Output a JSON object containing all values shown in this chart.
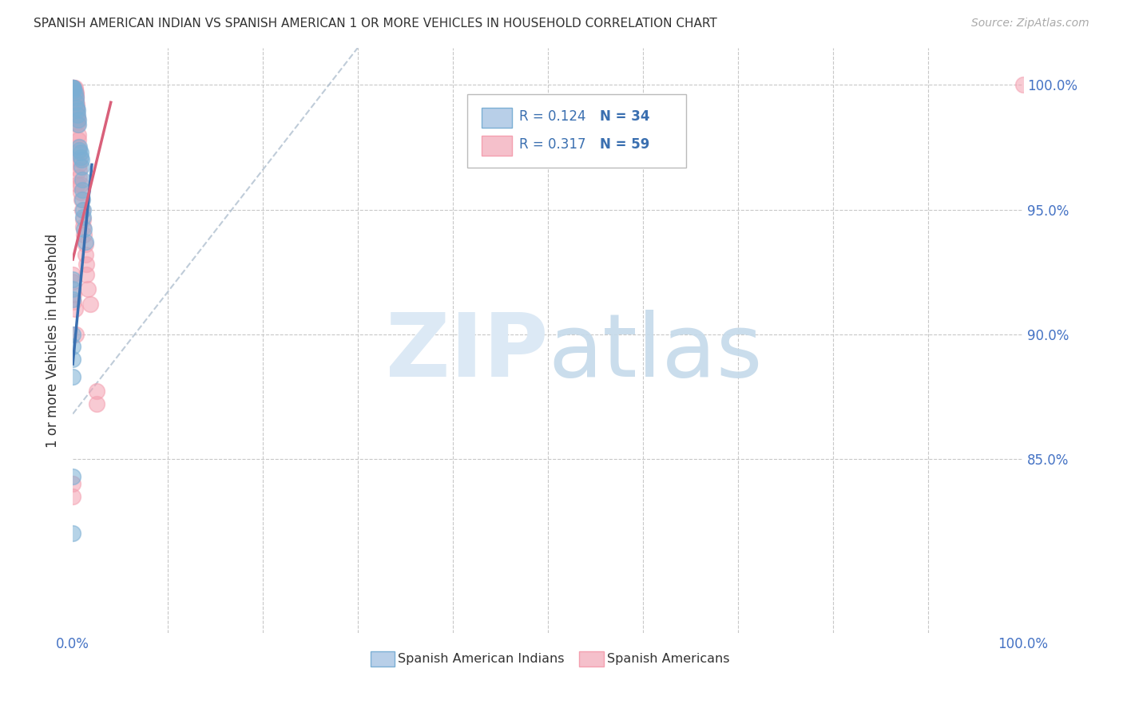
{
  "title": "SPANISH AMERICAN INDIAN VS SPANISH AMERICAN 1 OR MORE VEHICLES IN HOUSEHOLD CORRELATION CHART",
  "source": "Source: ZipAtlas.com",
  "ylabel": "1 or more Vehicles in Household",
  "xlim": [
    0.0,
    1.0
  ],
  "ylim": [
    0.78,
    1.015
  ],
  "y_ticks": [
    0.85,
    0.9,
    0.95,
    1.0
  ],
  "y_tick_labels": [
    "85.0%",
    "90.0%",
    "95.0%",
    "100.0%"
  ],
  "x_tick_labels": [
    "0.0%",
    "100.0%"
  ],
  "grid_color": "#c8c8c8",
  "legend_R_blue": "0.124",
  "legend_N_blue": "34",
  "legend_R_pink": "0.317",
  "legend_N_pink": "59",
  "legend_label_blue": "Spanish American Indians",
  "legend_label_pink": "Spanish Americans",
  "blue_color": "#7bafd4",
  "pink_color": "#f4a0b0",
  "blue_scatter_x": [
    0.0,
    0.0,
    0.001,
    0.001,
    0.002,
    0.003,
    0.003,
    0.004,
    0.005,
    0.005,
    0.006,
    0.006,
    0.007,
    0.007,
    0.008,
    0.008,
    0.009,
    0.009,
    0.01,
    0.01,
    0.01,
    0.011,
    0.011,
    0.012,
    0.013,
    0.0,
    0.0,
    0.0,
    0.0,
    0.0,
    0.0,
    0.0,
    0.0,
    0.0
  ],
  "blue_scatter_y": [
    0.999,
    0.999,
    0.999,
    0.998,
    0.997,
    0.995,
    0.993,
    0.991,
    0.99,
    0.988,
    0.986,
    0.984,
    0.975,
    0.974,
    0.973,
    0.971,
    0.97,
    0.967,
    0.962,
    0.958,
    0.954,
    0.95,
    0.947,
    0.942,
    0.937,
    0.922,
    0.918,
    0.914,
    0.9,
    0.895,
    0.89,
    0.883,
    0.843,
    0.82
  ],
  "pink_scatter_x": [
    0.0,
    0.0,
    0.0,
    0.0,
    0.001,
    0.001,
    0.001,
    0.002,
    0.002,
    0.002,
    0.002,
    0.002,
    0.003,
    0.003,
    0.003,
    0.003,
    0.003,
    0.004,
    0.004,
    0.004,
    0.004,
    0.004,
    0.005,
    0.005,
    0.005,
    0.005,
    0.005,
    0.006,
    0.006,
    0.006,
    0.006,
    0.007,
    0.007,
    0.007,
    0.007,
    0.008,
    0.008,
    0.009,
    0.01,
    0.011,
    0.011,
    0.012,
    0.013,
    0.013,
    0.014,
    0.014,
    0.016,
    0.018,
    0.0,
    0.0,
    0.001,
    0.001,
    0.025,
    0.025,
    0.0,
    0.0,
    0.002,
    0.003,
    1.0
  ],
  "pink_scatter_y": [
    0.999,
    0.999,
    0.999,
    0.999,
    0.999,
    0.999,
    0.998,
    0.999,
    0.998,
    0.997,
    0.997,
    0.996,
    0.997,
    0.996,
    0.995,
    0.994,
    0.993,
    0.992,
    0.991,
    0.99,
    0.989,
    0.988,
    0.987,
    0.986,
    0.985,
    0.984,
    0.96,
    0.98,
    0.978,
    0.975,
    0.973,
    0.97,
    0.968,
    0.966,
    0.963,
    0.96,
    0.957,
    0.954,
    0.95,
    0.946,
    0.943,
    0.94,
    0.936,
    0.932,
    0.928,
    0.924,
    0.918,
    0.912,
    0.924,
    0.921,
    0.916,
    0.913,
    0.877,
    0.872,
    0.84,
    0.835,
    0.91,
    0.9,
    1.0
  ],
  "blue_line_x": [
    0.0,
    0.02
  ],
  "blue_line_y": [
    0.888,
    0.968
  ],
  "pink_line_x": [
    0.0,
    0.04
  ],
  "pink_line_y": [
    0.93,
    0.993
  ],
  "diag_line_x": [
    0.0,
    0.3
  ],
  "diag_line_y": [
    0.868,
    1.015
  ]
}
